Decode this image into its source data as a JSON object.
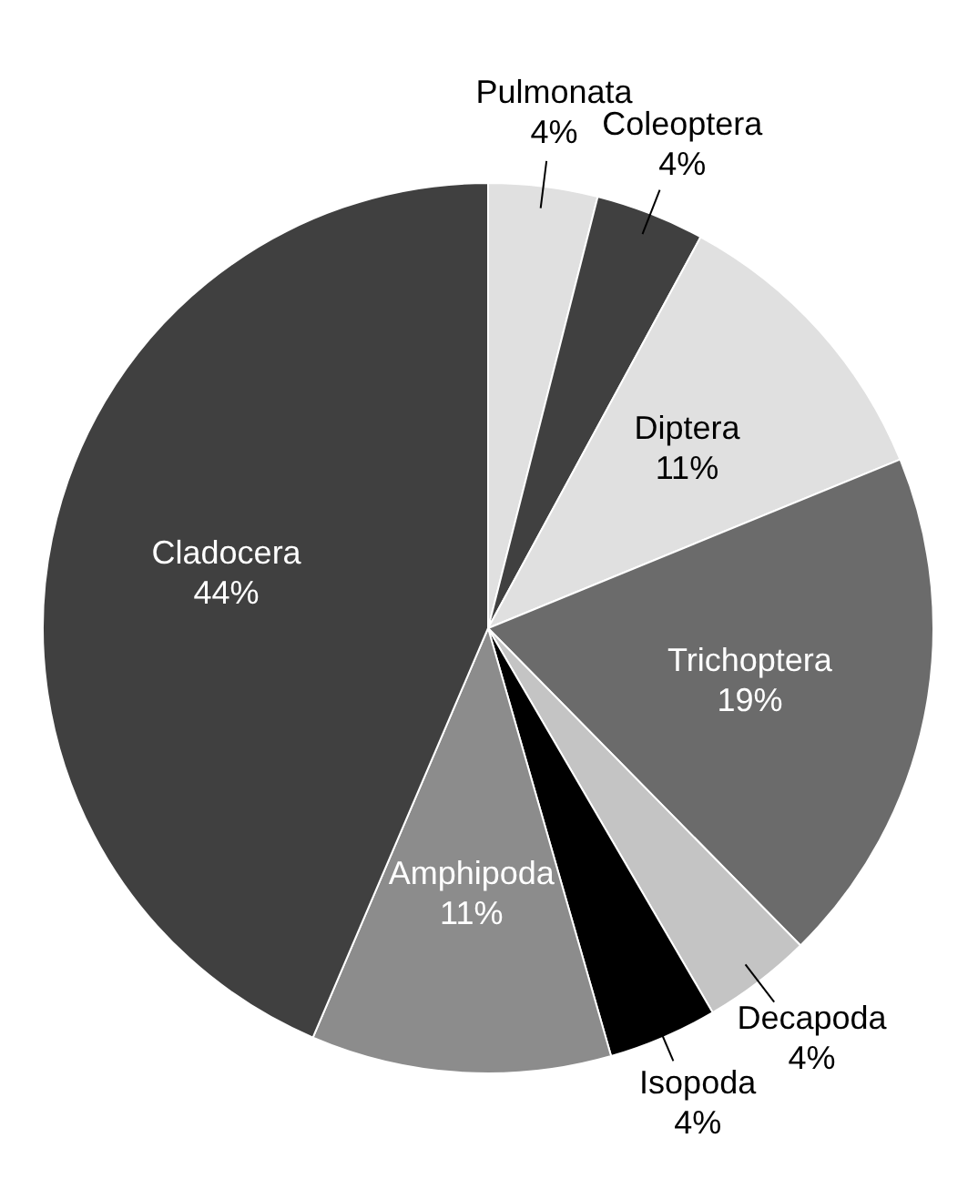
{
  "chart_data": {
    "type": "pie",
    "categories": [
      "Pulmonata",
      "Coleoptera",
      "Diptera",
      "Trichoptera",
      "Decapoda",
      "Isopoda",
      "Amphipoda",
      "Cladocera"
    ],
    "values": [
      4,
      4,
      11,
      19,
      4,
      4,
      11,
      44
    ],
    "value_labels": [
      "4%",
      "4%",
      "11%",
      "19%",
      "4%",
      "4%",
      "11%",
      "44%"
    ],
    "colors": [
      "#e0e0e0",
      "#404040",
      "#e0e0e0",
      "#6b6b6b",
      "#c4c4c4",
      "#000000",
      "#8c8c8c",
      "#404040"
    ],
    "legend": false
  }
}
